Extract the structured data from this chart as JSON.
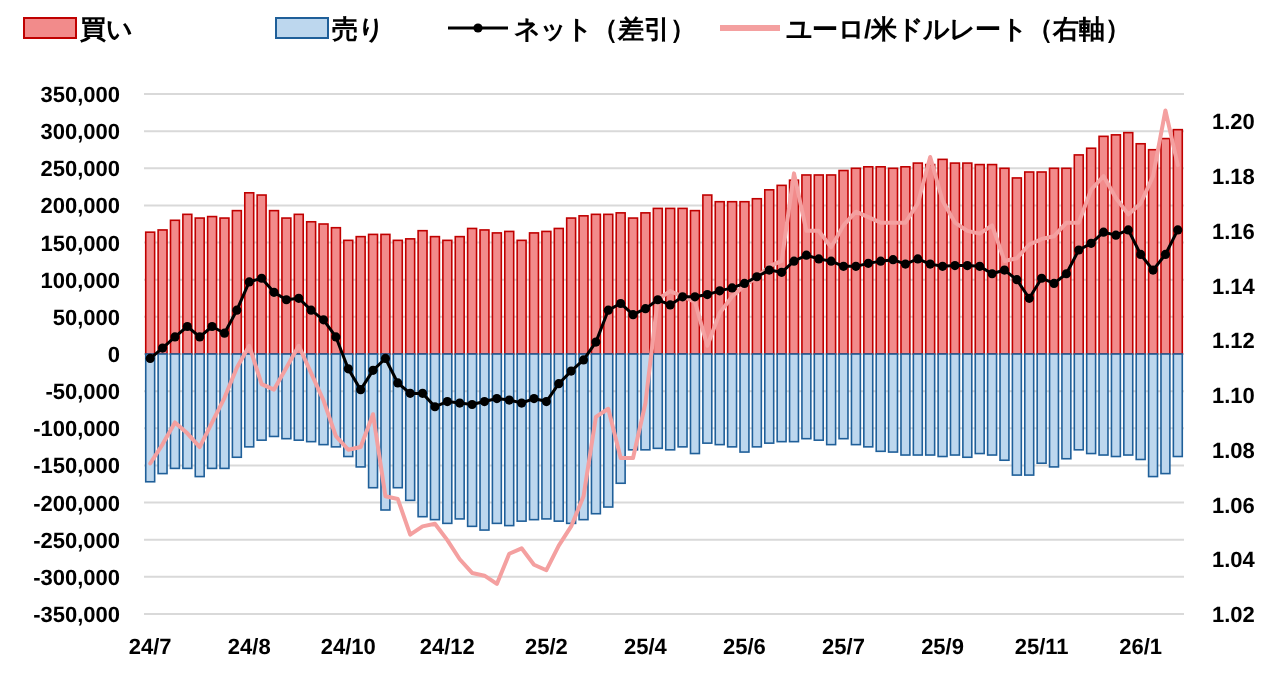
{
  "chart_data": {
    "type": "bar",
    "stacked": true,
    "legend": "top",
    "grid": "y",
    "categories": [
      "24/7",
      null,
      null,
      null,
      null,
      null,
      null,
      null,
      "24/8",
      null,
      null,
      null,
      null,
      null,
      null,
      null,
      "24/10",
      null,
      null,
      null,
      null,
      null,
      null,
      null,
      "24/12",
      null,
      null,
      null,
      null,
      null,
      null,
      null,
      "25/2",
      null,
      null,
      null,
      null,
      null,
      null,
      null,
      "25/4",
      null,
      null,
      null,
      null,
      null,
      null,
      null,
      "25/6",
      null,
      null,
      null,
      null,
      null,
      null,
      null,
      "25/7",
      null,
      null,
      null,
      null,
      null,
      null,
      null,
      "25/9",
      null,
      null,
      null,
      null,
      null,
      null,
      null,
      "25/11",
      null,
      null,
      null,
      null,
      null,
      null,
      null,
      "26/1",
      null,
      null,
      null
    ],
    "ylim": [
      -350000,
      350000
    ],
    "yticks": [
      {
        "value": -350000,
        "label": "-350,000"
      },
      {
        "value": -300000,
        "label": "-300,000"
      },
      {
        "value": -250000,
        "label": "-250,000"
      },
      {
        "value": -200000,
        "label": "-200,000"
      },
      {
        "value": -150000,
        "label": "-150,000"
      },
      {
        "value": -100000,
        "label": "-100,000"
      },
      {
        "value": -50000,
        "label": "-50,000"
      },
      0,
      {
        "value": 50000,
        "label": "50,000"
      },
      {
        "value": 100000,
        "label": "100,000"
      },
      {
        "value": 150000,
        "label": "150,000"
      },
      {
        "value": 200000,
        "label": "200,000"
      },
      {
        "value": 250000,
        "label": "250,000"
      },
      {
        "value": 300000,
        "label": "300,000"
      },
      {
        "value": 350000,
        "label": "350,000"
      }
    ],
    "y2lim": [
      1.02,
      1.21
    ],
    "y2ticks": [
      {
        "value": 1.02,
        "label": "1.02"
      },
      {
        "value": 1.04,
        "label": "1.04"
      },
      {
        "value": 1.06,
        "label": "1.06"
      },
      {
        "value": 1.08,
        "label": "1.08"
      },
      {
        "value": 1.1,
        "label": "1.10"
      },
      {
        "value": 1.12,
        "label": "1.12"
      },
      {
        "value": 1.14,
        "label": "1.14"
      },
      {
        "value": 1.16,
        "label": "1.16"
      },
      {
        "value": 1.18,
        "label": "1.18"
      },
      {
        "value": 1.2,
        "label": "1.20"
      }
    ],
    "series": [
      {
        "name": "買い",
        "color": "#f28b8b",
        "values": [
          164000,
          167000,
          180000,
          188000,
          183000,
          185000,
          183000,
          193000,
          217000,
          214000,
          193000,
          183000,
          188000,
          178000,
          175000,
          170000,
          153000,
          158000,
          161000,
          161000,
          153000,
          155000,
          166000,
          158000,
          153000,
          158000,
          169000,
          167000,
          163000,
          165000,
          153000,
          163000,
          165000,
          169000,
          183000,
          186000,
          188000,
          188000,
          190000,
          183000,
          190000,
          196000,
          196000,
          196000,
          193000,
          214000,
          205000,
          205000,
          205000,
          209000,
          221000,
          227000,
          234000,
          241000,
          241000,
          241000,
          247000,
          250000,
          252000,
          252000,
          250000,
          252000,
          257000,
          255000,
          262000,
          257000,
          257000,
          255000,
          255000,
          250000,
          237000,
          245000,
          245000,
          250000,
          250000,
          268000,
          277000,
          293000,
          295000,
          298000,
          283000,
          275000,
          290000,
          302000
        ]
      },
      {
        "name": "売り",
        "color": "#bdd7ee",
        "values": [
          -172000,
          -161000,
          -154000,
          -154000,
          -165000,
          -154000,
          -154000,
          -139000,
          -125000,
          -116000,
          -111000,
          -114000,
          -116000,
          -118000,
          -122000,
          -125000,
          -138000,
          -152000,
          -180000,
          -210000,
          -180000,
          -197000,
          -219000,
          -223000,
          -228000,
          -222000,
          -232000,
          -237000,
          -228000,
          -231000,
          -225000,
          -223000,
          -222000,
          -225000,
          -228000,
          -223000,
          -215000,
          -206000,
          -174000,
          -129000,
          -129000,
          -127000,
          -129000,
          -125000,
          -134000,
          -120000,
          -122000,
          -125000,
          -132000,
          -125000,
          -120000,
          -118000,
          -118000,
          -114000,
          -116000,
          -122000,
          -114000,
          -122000,
          -125000,
          -131000,
          -132000,
          -136000,
          -136000,
          -136000,
          -138000,
          -136000,
          -139000,
          -134000,
          -136000,
          -143000,
          -163000,
          -163000,
          -147000,
          -152000,
          -141000,
          -129000,
          -134000,
          -136000,
          -138000,
          -136000,
          -142000,
          -165000,
          -161000,
          -138000
        ]
      },
      {
        "name": "ネット（差引）",
        "type": "line",
        "color": "#000000",
        "marker": "circle",
        "values": [
          -6000,
          8000,
          23000,
          37000,
          23000,
          37000,
          28000,
          59000,
          97000,
          102000,
          83000,
          73000,
          75000,
          59000,
          46000,
          23000,
          -20000,
          -48000,
          -22000,
          -6000,
          -39000,
          -53000,
          -53000,
          -71000,
          -64000,
          -66000,
          -68000,
          -64000,
          -60000,
          -62000,
          -66000,
          -60000,
          -64000,
          -40000,
          -23000,
          -8000,
          16000,
          59000,
          68000,
          53000,
          61000,
          73000,
          66000,
          77000,
          77000,
          80000,
          85000,
          89000,
          95000,
          104000,
          113000,
          110000,
          125000,
          133000,
          128000,
          125000,
          118000,
          118000,
          122000,
          125000,
          127000,
          121000,
          128000,
          121000,
          118000,
          119000,
          119000,
          118000,
          108000,
          113000,
          100000,
          75000,
          102000,
          95000,
          108000,
          140000,
          149000,
          164000,
          160000,
          167000,
          134000,
          113000,
          134000,
          167000
        ]
      },
      {
        "name": "ユーロ/米ドルレート（右軸）",
        "type": "line",
        "axis": "y2",
        "color": "#f4a0a0",
        "values": [
          1.075,
          1.082,
          1.09,
          1.086,
          1.081,
          1.09,
          1.099,
          1.11,
          1.118,
          1.104,
          1.102,
          1.11,
          1.118,
          1.108,
          1.098,
          1.085,
          1.08,
          1.081,
          1.093,
          1.063,
          1.062,
          1.049,
          1.052,
          1.053,
          1.047,
          1.04,
          1.035,
          1.034,
          1.031,
          1.042,
          1.044,
          1.038,
          1.036,
          1.045,
          1.052,
          1.063,
          1.092,
          1.095,
          1.077,
          1.077,
          1.097,
          1.135,
          1.138,
          1.136,
          1.134,
          1.118,
          1.13,
          1.136,
          1.14,
          1.143,
          1.147,
          1.149,
          1.181,
          1.16,
          1.16,
          1.154,
          1.162,
          1.167,
          1.165,
          1.163,
          1.163,
          1.163,
          1.17,
          1.187,
          1.171,
          1.163,
          1.16,
          1.159,
          1.162,
          1.149,
          1.15,
          1.155,
          1.157,
          1.158,
          1.163,
          1.163,
          1.175,
          1.18,
          1.172,
          1.166,
          1.17,
          1.18,
          1.204,
          1.184
        ]
      }
    ]
  }
}
